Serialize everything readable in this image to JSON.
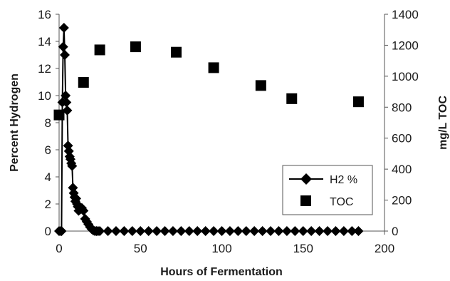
{
  "chart_data": {
    "type": "scatter",
    "title": "",
    "xlabel": "Hours of Fermentation",
    "ylabel_left": "Percent Hydrogen",
    "ylabel_right": "mg/L TOC",
    "xlim": [
      0,
      200
    ],
    "ylim_left": [
      0,
      16
    ],
    "ylim_right": [
      0,
      1400
    ],
    "x_ticks": [
      "0",
      "50",
      "100",
      "150",
      "200"
    ],
    "y_left_ticks": [
      "0",
      "2",
      "4",
      "6",
      "8",
      "10",
      "12",
      "14",
      "16"
    ],
    "y_right_ticks": [
      "0",
      "200",
      "400",
      "600",
      "800",
      "1000",
      "1200",
      "1400"
    ],
    "grid": false,
    "legend_position": "lower-right",
    "series": [
      {
        "name": "H2 %",
        "axis": "left",
        "style": "line-with-diamond-markers",
        "color": "#000000",
        "x": [
          0,
          1,
          1.5,
          2,
          2.5,
          3,
          3.5,
          4,
          4.5,
          5,
          5.5,
          6,
          6.5,
          7,
          7.5,
          8,
          8.5,
          9,
          9.5,
          10,
          10.5,
          11,
          11.5,
          12,
          13,
          14,
          15,
          16,
          17,
          18,
          19,
          20,
          21,
          22,
          23,
          24,
          25,
          30,
          35,
          40,
          45,
          50,
          55,
          60,
          65,
          70,
          75,
          80,
          85,
          90,
          95,
          100,
          105,
          110,
          115,
          120,
          125,
          130,
          135,
          140,
          145,
          150,
          155,
          160,
          165,
          170,
          175,
          180,
          184
        ],
        "values": [
          0,
          0,
          0,
          9.5,
          13.6,
          15.0,
          13.0,
          10.0,
          9.5,
          8.9,
          6.3,
          5.9,
          5.5,
          5.3,
          5.0,
          4.8,
          3.2,
          2.8,
          2.5,
          2.2,
          2.4,
          2.0,
          1.8,
          1.5,
          1.6,
          1.7,
          1.5,
          0.9,
          0.7,
          0.5,
          0.3,
          0.15,
          0.05,
          0,
          0,
          0,
          0,
          0,
          0,
          0,
          0,
          0,
          0,
          0,
          0,
          0,
          0,
          0,
          0,
          0,
          0,
          0,
          0,
          0,
          0,
          0,
          0,
          0,
          0,
          0,
          0,
          0,
          0,
          0,
          0,
          0,
          0,
          0,
          0
        ]
      },
      {
        "name": "TOC",
        "axis": "right",
        "style": "square-markers",
        "color": "#000000",
        "x": [
          0,
          15,
          25,
          47,
          72,
          95,
          124,
          143,
          184
        ],
        "values": [
          750,
          960,
          1170,
          1190,
          1155,
          1055,
          940,
          855,
          835
        ]
      }
    ]
  }
}
